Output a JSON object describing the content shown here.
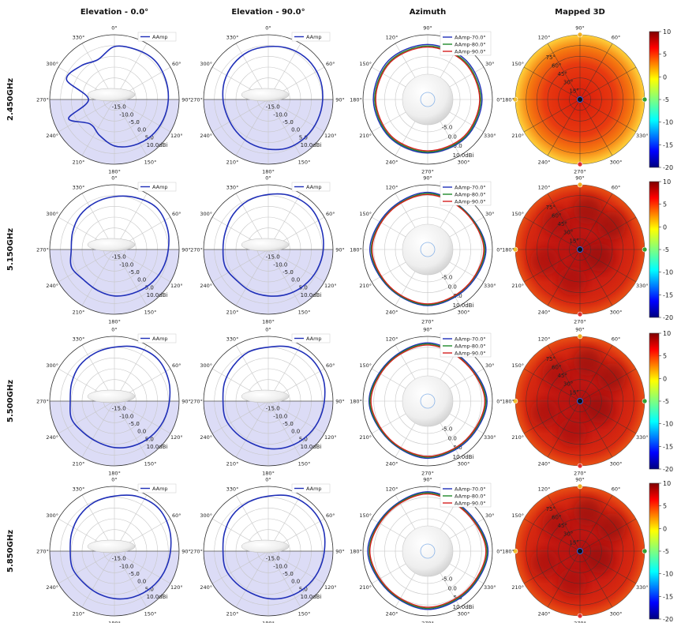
{
  "chart_data": {
    "type": "polar",
    "columns": [
      {
        "key": "el0",
        "title": "Elevation - 0.0°"
      },
      {
        "key": "el90",
        "title": "Elevation - 90.0°"
      },
      {
        "key": "az",
        "title": "Azimuth"
      },
      {
        "key": "m3d",
        "title": "Mapped 3D"
      }
    ],
    "rows": [
      {
        "label": "2.450GHz"
      },
      {
        "label": "5.150GHz"
      },
      {
        "label": "5.500GHz"
      },
      {
        "label": "5.850GHz"
      }
    ],
    "elevation_angle_labels": [
      "0°",
      "330°",
      "300°",
      "270°",
      "240°",
      "210°",
      "180°",
      "150°",
      "120°",
      "90°",
      "60°",
      "30°"
    ],
    "azimuth_angle_labels": [
      "90°",
      "60°",
      "30°",
      "0°",
      "330°",
      "300°",
      "270°",
      "240°",
      "210°",
      "180°",
      "150°",
      "120°"
    ],
    "mapped_angle_labels": [
      "90°",
      "60°",
      "0°",
      "330°",
      "300°",
      "270°",
      "240°",
      "210°",
      "180°",
      "150°",
      "120°"
    ],
    "mapped_ring_labels": [
      "15°",
      "30°",
      "45°",
      "60°",
      "75°"
    ],
    "elevation_radial_labels": [
      "-15.0",
      "-10.0",
      "-5.0",
      "0.0",
      "5.0",
      "10.0dBi"
    ],
    "azimuth_radial_labels": [
      "-5.0",
      "0.0",
      "5.0",
      "10.0dBi"
    ],
    "r_range_dbi": [
      -20,
      10
    ],
    "elevation_legend": [
      "AAmp"
    ],
    "azimuth_legend": [
      "AAmp-70.0°",
      "AAmp-80.0°",
      "AAmp-90.0°"
    ],
    "colors": {
      "elevation": "#1f2fb8",
      "az70": "#1f2fb8",
      "az80": "#1f8a2a",
      "az90": "#d62020",
      "lower_half_fill": "#dcdcf6",
      "grid": "#c6c6c6"
    },
    "colorbar": {
      "range": [
        -20,
        10
      ],
      "ticks": [
        "10",
        "5",
        "0",
        "-5",
        "-10",
        "-15",
        "-20"
      ],
      "colormap": "jet"
    },
    "patterns": {
      "2.450GHz": {
        "el0_gain_dbi": [
          4.5,
          5.2,
          6.0,
          5.5,
          5.0,
          4.5,
          4.0,
          3.0,
          1.5,
          -2,
          -4,
          3,
          -8,
          4,
          2,
          0
        ],
        "el90_gain_dbi": [
          4.5,
          5.5,
          6.0,
          5.8,
          5.2,
          4.8,
          4.5,
          4.2,
          3.0,
          2.0,
          1.0,
          0.5,
          1.0,
          2.0,
          3.0,
          4.0
        ],
        "az_gain_dbi": {
          "70": [
            5.5,
            5.4,
            5.2,
            5.0,
            4.8,
            4.9,
            5.2,
            5.6
          ],
          "80": [
            4.8,
            4.7,
            4.6,
            4.5,
            4.3,
            4.4,
            4.6,
            4.9
          ],
          "90": [
            4.3,
            4.2,
            4.1,
            4.0,
            3.8,
            3.9,
            4.1,
            4.4
          ]
        }
      },
      "5.150GHz": {
        "el0_gain_dbi": [
          4.5,
          6.0,
          7.5,
          6.5,
          5.0,
          4.0,
          3.0,
          2.0,
          1.5,
          0.5,
          0.0,
          1.5,
          0.0,
          1.0,
          2.5,
          3.5
        ],
        "el90_gain_dbi": [
          5.5,
          7.0,
          7.5,
          6.5,
          5.5,
          4.5,
          3.5,
          2.5,
          1.5,
          1.0,
          0.5,
          1.5,
          1.0,
          1.5,
          3.0,
          4.5
        ],
        "az_gain_dbi": {
          "70": [
            6.5,
            5.0,
            7.0,
            5.5,
            6.0,
            5.2,
            6.8,
            5.5
          ],
          "80": [
            6.0,
            4.8,
            6.5,
            5.0,
            5.6,
            4.9,
            6.2,
            5.0
          ],
          "90": [
            5.5,
            4.5,
            6.0,
            4.8,
            5.2,
            4.6,
            5.8,
            4.8
          ]
        }
      },
      "5.500GHz": {
        "el0_gain_dbi": [
          5.0,
          7.0,
          8.0,
          7.0,
          5.5,
          4.5,
          3.5,
          2.5,
          1.5,
          0.5,
          0.5,
          1.5,
          0.5,
          1.5,
          3.0,
          4.0
        ],
        "el90_gain_dbi": [
          5.0,
          7.0,
          8.0,
          7.5,
          6.0,
          5.0,
          4.0,
          3.0,
          2.0,
          1.0,
          1.0,
          1.5,
          1.0,
          2.0,
          3.0,
          4.5
        ],
        "az_gain_dbi": {
          "70": [
            7.0,
            5.5,
            7.5,
            6.0,
            6.5,
            5.5,
            7.2,
            5.8
          ],
          "80": [
            6.5,
            5.0,
            7.0,
            5.5,
            6.0,
            5.2,
            6.8,
            5.4
          ],
          "90": [
            6.0,
            4.8,
            6.5,
            5.2,
            5.6,
            4.9,
            6.3,
            5.1
          ]
        }
      },
      "5.850GHz": {
        "el0_gain_dbi": [
          5.5,
          7.5,
          8.5,
          7.5,
          6.0,
          5.0,
          4.0,
          3.0,
          2.0,
          1.0,
          0.5,
          1.0,
          0.5,
          1.5,
          3.0,
          4.5
        ],
        "el90_gain_dbi": [
          5.5,
          7.5,
          8.0,
          7.5,
          6.0,
          5.0,
          4.0,
          3.0,
          2.0,
          1.0,
          1.0,
          1.5,
          1.0,
          2.0,
          3.5,
          4.5
        ],
        "az_gain_dbi": {
          "70": [
            7.5,
            6.0,
            8.0,
            6.5,
            7.0,
            6.0,
            7.8,
            6.2
          ],
          "80": [
            7.0,
            5.5,
            7.5,
            6.0,
            6.5,
            5.6,
            7.2,
            5.8
          ],
          "90": [
            6.5,
            5.2,
            7.0,
            5.6,
            6.0,
            5.3,
            6.8,
            5.5
          ]
        }
      }
    },
    "mapped_3d": {
      "2.450GHz": {
        "center_dbi": 4,
        "edge_dbi": 2
      },
      "5.150GHz": {
        "center_dbi": 7,
        "edge_dbi": 6
      },
      "5.500GHz": {
        "center_dbi": 7,
        "edge_dbi": 6
      },
      "5.850GHz": {
        "center_dbi": 8,
        "edge_dbi": 7
      }
    }
  }
}
